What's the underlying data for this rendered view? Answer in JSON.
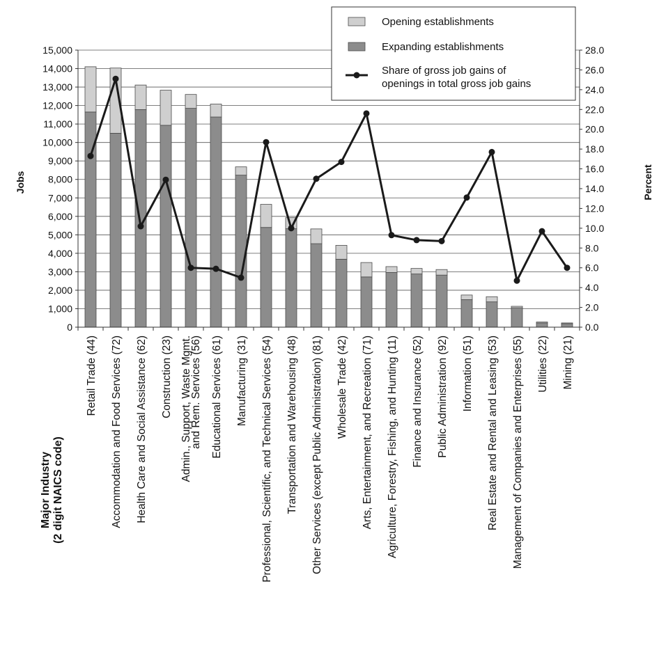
{
  "chart_data": {
    "type": "bar",
    "stacked": true,
    "categories": [
      "Retail Trade (44)",
      "Accommodation and Food Services (72)",
      "Health Care and Social Assistance (62)",
      "Construction (23)",
      "Admin., Support, Waste Mgmt.|and Rem. Services (56)",
      "Educational Services (61)",
      "Manufacturing (31)",
      "Professional, Scientific, and Technical Services (54)",
      "Transportation and Warehousing (48)",
      "Other Services (except Public Administration) (81)",
      "Wholesale Trade (42)",
      "Arts, Entertainment, and Recreation (71)",
      "Agriculture, Forestry, Fishing, and Hunting (11)",
      "Finance and Insurance (52)",
      "Public Administration (92)",
      "Information (51)",
      "Real Estate and Rental and Leasing (53)",
      "Management of Companies and Enterprises (55)",
      "Utilities (22)",
      "Mining (21)"
    ],
    "series": [
      {
        "name": "Expanding establishments",
        "axis": "left",
        "color": "#8c8c8c",
        "values": [
          11650,
          10500,
          11780,
          10930,
          11850,
          11380,
          8230,
          5400,
          5330,
          4520,
          3680,
          2720,
          2960,
          2880,
          2820,
          1490,
          1370,
          1050,
          230,
          190
        ]
      },
      {
        "name": "Opening establishments",
        "axis": "left",
        "color": "#cfcfcf",
        "values": [
          2450,
          3530,
          1330,
          1900,
          750,
          700,
          450,
          1250,
          600,
          800,
          750,
          780,
          320,
          300,
          300,
          250,
          280,
          80,
          50,
          40
        ]
      },
      {
        "name": "Share of gross job gains of openings in total gross job gains",
        "axis": "right",
        "type": "line",
        "color": "#1a1a1a",
        "values": [
          17.3,
          25.1,
          10.2,
          14.9,
          6.0,
          5.9,
          5.0,
          18.7,
          10.0,
          15.0,
          16.7,
          21.6,
          9.3,
          8.8,
          8.7,
          13.1,
          17.7,
          4.7,
          9.7,
          6.0
        ]
      }
    ],
    "legend_order": [
      "Opening establishments",
      "Expanding establishments",
      "Share of gross job gains of openings in total gross job gains"
    ],
    "legend_labels": [
      "Opening establishments",
      "Expanding establishments",
      "Share of gross job gains of|openings in total gross job gains"
    ],
    "legend_position": "top-right",
    "ylabel": "Jobs",
    "y2label": "Percent",
    "xlabel_lines": [
      "Major Industry",
      "(2 digit NAICS code)"
    ],
    "ylim": [
      0,
      15000
    ],
    "y2lim": [
      0,
      28
    ],
    "yticks": [
      "0",
      "1,000",
      "2,000",
      "3,000",
      "4,000",
      "5,000",
      "6,000",
      "7,000",
      "8,000",
      "9,000",
      "10,000",
      "11,000",
      "12,000",
      "13,000",
      "14,000",
      "15,000"
    ],
    "y2ticks": [
      "0.0",
      "2.0",
      "4.0",
      "6.0",
      "8.0",
      "10.0",
      "12.0",
      "14.0",
      "16.0",
      "18.0",
      "20.0",
      "22.0",
      "24.0",
      "26.0",
      "28.0"
    ],
    "grid": true,
    "colors": {
      "expanding": "#8c8c8c",
      "opening": "#cfcfcf",
      "line": "#1a1a1a",
      "grid": "#555555"
    }
  }
}
